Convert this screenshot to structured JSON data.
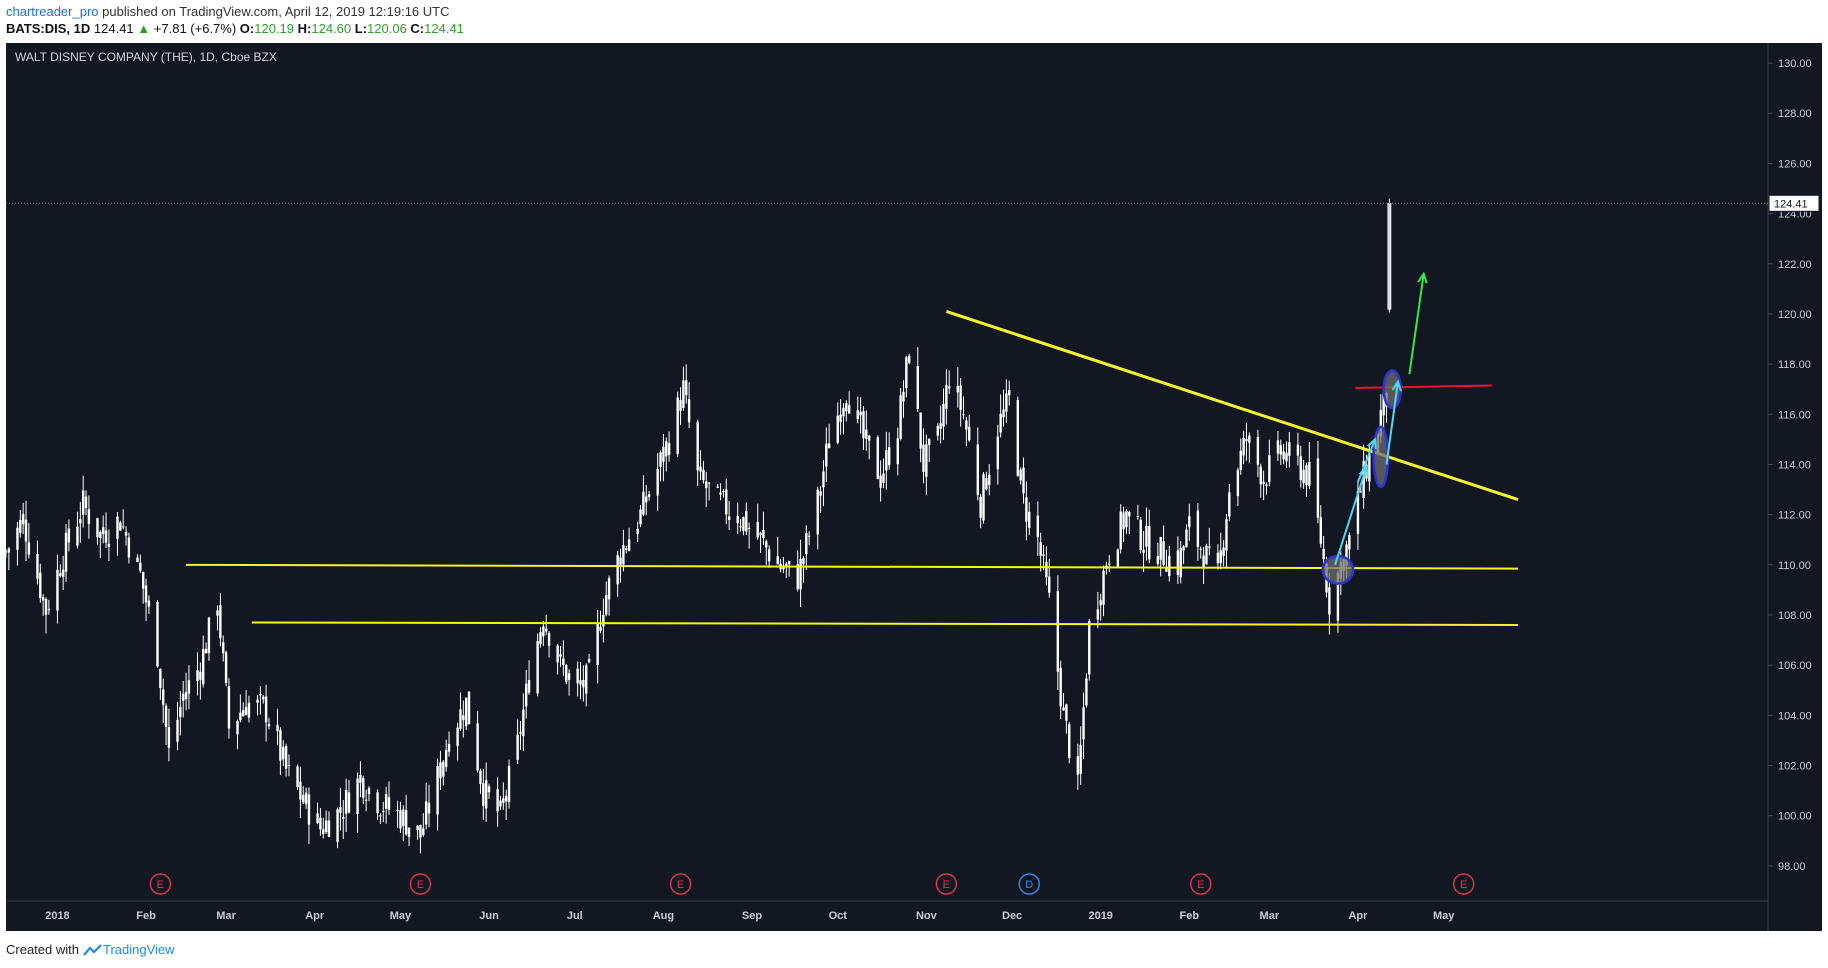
{
  "header": {
    "author": "chartreader_pro",
    "published_text": "published on TradingView.com, April 12, 2019 12:19:16 UTC",
    "symbol": "BATS:DIS, 1D",
    "last": "124.41",
    "change": "+7.81 (+6.7%)",
    "o_label": "O:",
    "o_value": "120.19",
    "h_label": "H:",
    "h_value": "124.60",
    "l_label": "L:",
    "l_value": "120.06",
    "c_label": "C:",
    "c_value": "124.41"
  },
  "footer": {
    "created_with": "Created with",
    "brand": "TradingView"
  },
  "colors": {
    "background": "#131722",
    "candle": "#ffffff",
    "trendline": "#f5f52a",
    "resistance": "#e0182d",
    "arrow_green": "#2ee84a",
    "arrow_cyan": "#4fd6f0",
    "ellipse_stroke": "#2a34d6",
    "ellipse_fill": "#6e6e6e",
    "earnings": "#d83a4a",
    "dividend": "#2a8ef0"
  },
  "chart_data": {
    "type": "candlestick",
    "title": "WALT DISNEY COMPANY (THE), 1D, Cboe BZX",
    "last_price_label": "124.41",
    "ylim": [
      96.6,
      130.8
    ],
    "y_ticks": [
      98,
      100,
      102,
      104,
      106,
      108,
      110,
      112,
      114,
      116,
      118,
      120,
      122,
      124,
      126,
      128,
      130
    ],
    "y_tick_labels": [
      "98.00",
      "100.00",
      "102.00",
      "104.00",
      "106.00",
      "108.00",
      "110.00",
      "112.00",
      "114.00",
      "116.00",
      "118.00",
      "120.00",
      "122.00",
      "124.00",
      "126.00",
      "128.00",
      "130.00"
    ],
    "x_range": [
      "2017-12-14",
      "2019-05-27"
    ],
    "x_ticks": [
      {
        "date": "2018-01-01",
        "label": "2018"
      },
      {
        "date": "2018-02-01",
        "label": "Feb"
      },
      {
        "date": "2018-03-01",
        "label": "Mar"
      },
      {
        "date": "2018-04-01",
        "label": "Apr"
      },
      {
        "date": "2018-05-01",
        "label": "May"
      },
      {
        "date": "2018-06-01",
        "label": "Jun"
      },
      {
        "date": "2018-07-01",
        "label": "Jul"
      },
      {
        "date": "2018-08-01",
        "label": "Aug"
      },
      {
        "date": "2018-09-01",
        "label": "Sep"
      },
      {
        "date": "2018-10-01",
        "label": "Oct"
      },
      {
        "date": "2018-11-01",
        "label": "Nov"
      },
      {
        "date": "2018-12-01",
        "label": "Dec"
      },
      {
        "date": "2019-01-01",
        "label": "2019"
      },
      {
        "date": "2019-02-01",
        "label": "Feb"
      },
      {
        "date": "2019-03-01",
        "label": "Mar"
      },
      {
        "date": "2019-04-01",
        "label": "Apr"
      },
      {
        "date": "2019-05-01",
        "label": "May"
      }
    ],
    "close_series": [
      {
        "date": "2017-12-14",
        "close": 110.5
      },
      {
        "date": "2017-12-20",
        "close": 111.8
      },
      {
        "date": "2017-12-28",
        "close": 108.2
      },
      {
        "date": "2018-01-03",
        "close": 110.4
      },
      {
        "date": "2018-01-10",
        "close": 112.4
      },
      {
        "date": "2018-01-16",
        "close": 111.2
      },
      {
        "date": "2018-01-23",
        "close": 111.8
      },
      {
        "date": "2018-01-30",
        "close": 109.6
      },
      {
        "date": "2018-02-05",
        "close": 106.5
      },
      {
        "date": "2018-02-09",
        "close": 102.5
      },
      {
        "date": "2018-02-14",
        "close": 104.8
      },
      {
        "date": "2018-02-20",
        "close": 106.0
      },
      {
        "date": "2018-02-26",
        "close": 108.6
      },
      {
        "date": "2018-03-02",
        "close": 103.5
      },
      {
        "date": "2018-03-08",
        "close": 104.5
      },
      {
        "date": "2018-03-15",
        "close": 104.2
      },
      {
        "date": "2018-03-22",
        "close": 101.8
      },
      {
        "date": "2018-03-28",
        "close": 100.6
      },
      {
        "date": "2018-04-03",
        "close": 99.5
      },
      {
        "date": "2018-04-10",
        "close": 100.2
      },
      {
        "date": "2018-04-17",
        "close": 101.5
      },
      {
        "date": "2018-04-24",
        "close": 100.5
      },
      {
        "date": "2018-05-01",
        "close": 100.0
      },
      {
        "date": "2018-05-08",
        "close": 99.2
      },
      {
        "date": "2018-05-14",
        "close": 101.5
      },
      {
        "date": "2018-05-18",
        "close": 103.2
      },
      {
        "date": "2018-05-24",
        "close": 104.5
      },
      {
        "date": "2018-05-30",
        "close": 101.0
      },
      {
        "date": "2018-06-05",
        "close": 100.0
      },
      {
        "date": "2018-06-11",
        "close": 102.8
      },
      {
        "date": "2018-06-15",
        "close": 105.5
      },
      {
        "date": "2018-06-20",
        "close": 108.0
      },
      {
        "date": "2018-06-26",
        "close": 106.0
      },
      {
        "date": "2018-07-02",
        "close": 105.0
      },
      {
        "date": "2018-07-06",
        "close": 105.5
      },
      {
        "date": "2018-07-11",
        "close": 108.5
      },
      {
        "date": "2018-07-17",
        "close": 110.5
      },
      {
        "date": "2018-07-24",
        "close": 112.0
      },
      {
        "date": "2018-07-30",
        "close": 113.8
      },
      {
        "date": "2018-08-03",
        "close": 115.0
      },
      {
        "date": "2018-08-08",
        "close": 117.0
      },
      {
        "date": "2018-08-13",
        "close": 113.5
      },
      {
        "date": "2018-08-20",
        "close": 112.5
      },
      {
        "date": "2018-08-27",
        "close": 112.0
      },
      {
        "date": "2018-09-04",
        "close": 111.0
      },
      {
        "date": "2018-09-10",
        "close": 110.0
      },
      {
        "date": "2018-09-17",
        "close": 109.5
      },
      {
        "date": "2018-09-24",
        "close": 112.5
      },
      {
        "date": "2018-09-28",
        "close": 115.0
      },
      {
        "date": "2018-10-04",
        "close": 117.0
      },
      {
        "date": "2018-10-10",
        "close": 115.0
      },
      {
        "date": "2018-10-16",
        "close": 113.5
      },
      {
        "date": "2018-10-22",
        "close": 115.5
      },
      {
        "date": "2018-10-26",
        "close": 118.5
      },
      {
        "date": "2018-10-31",
        "close": 114.0
      },
      {
        "date": "2018-11-05",
        "close": 115.0
      },
      {
        "date": "2018-11-09",
        "close": 117.5
      },
      {
        "date": "2018-11-14",
        "close": 116.0
      },
      {
        "date": "2018-11-20",
        "close": 112.5
      },
      {
        "date": "2018-11-26",
        "close": 115.5
      },
      {
        "date": "2018-11-30",
        "close": 116.5
      },
      {
        "date": "2018-12-05",
        "close": 112.5
      },
      {
        "date": "2018-12-10",
        "close": 111.0
      },
      {
        "date": "2018-12-14",
        "close": 108.5
      },
      {
        "date": "2018-12-19",
        "close": 104.0
      },
      {
        "date": "2018-12-24",
        "close": 101.0
      },
      {
        "date": "2018-12-28",
        "close": 107.5
      },
      {
        "date": "2019-01-04",
        "close": 110.5
      },
      {
        "date": "2019-01-10",
        "close": 112.0
      },
      {
        "date": "2019-01-16",
        "close": 111.0
      },
      {
        "date": "2019-01-22",
        "close": 110.5
      },
      {
        "date": "2019-01-28",
        "close": 110.0
      },
      {
        "date": "2019-02-01",
        "close": 111.5
      },
      {
        "date": "2019-02-06",
        "close": 110.5
      },
      {
        "date": "2019-02-11",
        "close": 109.5
      },
      {
        "date": "2019-02-15",
        "close": 113.0
      },
      {
        "date": "2019-02-21",
        "close": 115.0
      },
      {
        "date": "2019-02-27",
        "close": 113.5
      },
      {
        "date": "2019-03-05",
        "close": 114.5
      },
      {
        "date": "2019-03-11",
        "close": 114.0
      },
      {
        "date": "2019-03-15",
        "close": 113.5
      },
      {
        "date": "2019-03-19",
        "close": 111.0
      },
      {
        "date": "2019-03-22",
        "close": 108.5
      },
      {
        "date": "2019-03-26",
        "close": 110.0
      },
      {
        "date": "2019-03-29",
        "close": 111.0
      },
      {
        "date": "2019-04-03",
        "close": 113.5
      },
      {
        "date": "2019-04-08",
        "close": 115.5
      },
      {
        "date": "2019-04-10",
        "close": 116.5
      },
      {
        "date": "2019-04-11",
        "close": 116.6
      },
      {
        "date": "2019-04-12",
        "open": 120.19,
        "high": 124.6,
        "low": 120.06,
        "close": 124.41
      }
    ],
    "lines": [
      {
        "name": "support-upper",
        "color": "yellow",
        "from": {
          "date": "2018-02-15",
          "price": 110.0
        },
        "to": {
          "date": "2019-05-27",
          "price": 109.85
        }
      },
      {
        "name": "support-lower",
        "color": "yellow",
        "from": {
          "date": "2018-03-10",
          "price": 107.7
        },
        "to": {
          "date": "2019-05-27",
          "price": 107.6
        }
      },
      {
        "name": "descending-trendline",
        "color": "yellow",
        "from": {
          "date": "2018-11-08",
          "price": 120.1
        },
        "to": {
          "date": "2019-05-27",
          "price": 112.6
        }
      },
      {
        "name": "resistance",
        "color": "red",
        "from": {
          "date": "2019-03-31",
          "price": 117.05
        },
        "to": {
          "date": "2019-05-18",
          "price": 117.15
        }
      }
    ],
    "ellipses": [
      {
        "date": "2019-03-25",
        "price": 109.8,
        "rx_days": 5.3,
        "ry_price": 0.55
      },
      {
        "date": "2019-04-09",
        "price": 114.3,
        "rx_days": 2.5,
        "ry_price": 1.2
      },
      {
        "date": "2019-04-13",
        "price": 117.0,
        "rx_days": 3.0,
        "ry_price": 0.75
      }
    ],
    "arrows": [
      {
        "color": "cyan",
        "from": {
          "date": "2019-03-24",
          "price": 110.0
        },
        "to": {
          "date": "2019-04-04",
          "price": 113.9
        }
      },
      {
        "color": "cyan",
        "from": {
          "date": "2019-04-01",
          "price": 113.3
        },
        "to": {
          "date": "2019-04-07",
          "price": 115.0
        }
      },
      {
        "color": "cyan",
        "from": {
          "date": "2019-04-11",
          "price": 114.0
        },
        "to": {
          "date": "2019-04-15",
          "price": 117.3
        }
      },
      {
        "color": "green",
        "from": {
          "date": "2019-04-19",
          "price": 117.6
        },
        "to": {
          "date": "2019-04-24",
          "price": 121.6
        }
      }
    ],
    "events": [
      {
        "date": "2018-02-06",
        "label": "E"
      },
      {
        "date": "2018-05-08",
        "label": "E"
      },
      {
        "date": "2018-08-07",
        "label": "E"
      },
      {
        "date": "2018-11-08",
        "label": "E"
      },
      {
        "date": "2018-12-07",
        "label": "D"
      },
      {
        "date": "2019-02-05",
        "label": "E"
      },
      {
        "date": "2019-05-08",
        "label": "E"
      }
    ]
  }
}
